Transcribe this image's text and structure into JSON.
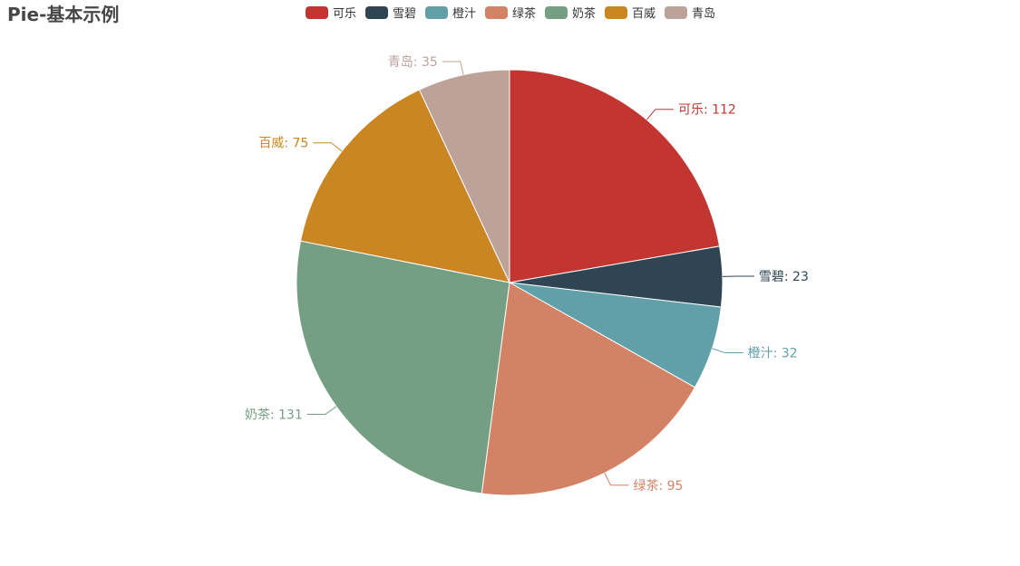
{
  "chart_data": {
    "type": "pie",
    "title": "Pie-基本示例",
    "categories": [
      "可乐",
      "雪碧",
      "橙汁",
      "绿茶",
      "奶茶",
      "百威",
      "青岛"
    ],
    "values": [
      112,
      23,
      32,
      95,
      131,
      75,
      35
    ],
    "colors": [
      "#c23531",
      "#2f4554",
      "#61a0a8",
      "#d48265",
      "#749f83",
      "#ca8622",
      "#bda29a"
    ],
    "legend_position": "top",
    "label_separator": ": "
  }
}
